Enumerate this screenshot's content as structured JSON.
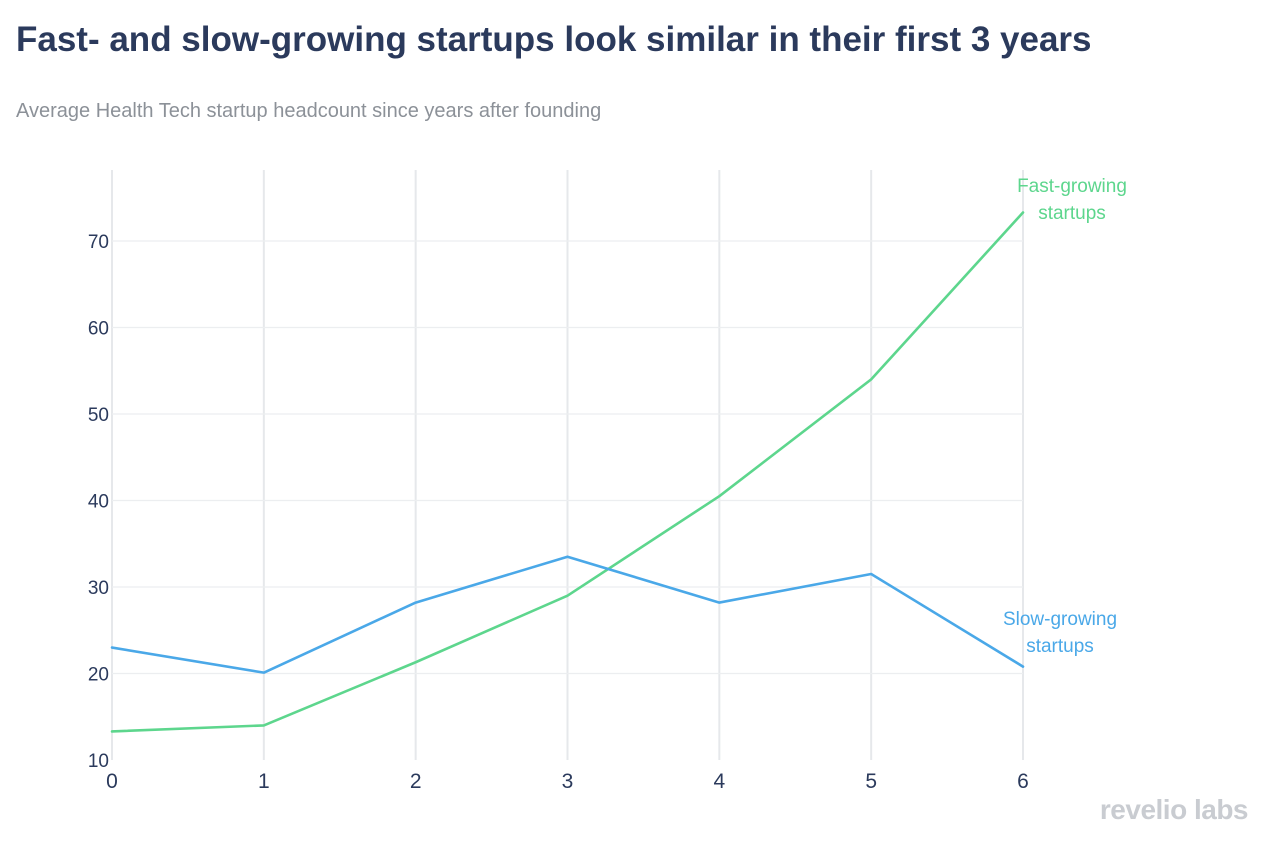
{
  "header": {
    "title": "Fast- and slow-growing startups look similar in their first 3 years",
    "subtitle": "Average Health Tech startup headcount since years after founding"
  },
  "brand": {
    "text": "revelio labs"
  },
  "chart_data": {
    "type": "line",
    "title": "Fast- and slow-growing startups look similar in their first 3 years",
    "subtitle": "Average Health Tech startup headcount since years after founding",
    "xlabel": "",
    "ylabel": "",
    "x": [
      0,
      1,
      2,
      3,
      4,
      5,
      6
    ],
    "x_ticks": [
      "0",
      "1",
      "2",
      "3",
      "4",
      "5",
      "6"
    ],
    "y_ticks": [
      "10",
      "20",
      "30",
      "40",
      "50",
      "60",
      "70"
    ],
    "y_tick_values": [
      10,
      20,
      30,
      40,
      50,
      60,
      70
    ],
    "xlim": [
      0,
      6
    ],
    "ylim": [
      10,
      80
    ],
    "grid": true,
    "series": [
      {
        "name": "Fast-growing startups",
        "label_lines": [
          "Fast-growing",
          "startups"
        ],
        "color": "#5dd68d",
        "values": [
          13.3,
          14.0,
          21.3,
          29.0,
          40.5,
          54.0,
          73.3
        ]
      },
      {
        "name": "Slow-growing startups",
        "label_lines": [
          "Slow-growing",
          "startups"
        ],
        "color": "#4aa8e8",
        "values": [
          23.0,
          20.1,
          28.2,
          33.5,
          28.2,
          31.5,
          20.8
        ]
      }
    ]
  }
}
